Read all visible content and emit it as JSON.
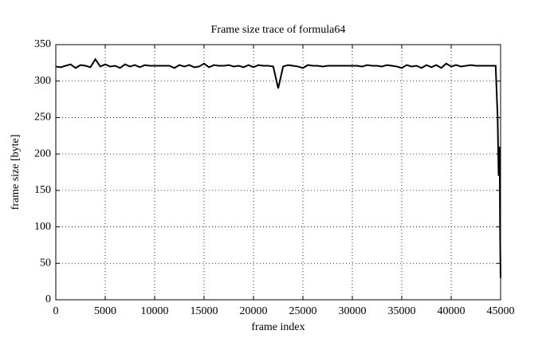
{
  "chart_data": {
    "type": "line",
    "title": "Frame size trace of formula64",
    "x_label": "frame index",
    "y_label": "frame size [byte]",
    "x": [
      0,
      500,
      1000,
      1500,
      2000,
      2500,
      3000,
      3500,
      4000,
      4500,
      5000,
      5500,
      6000,
      6500,
      7000,
      7500,
      8000,
      8500,
      9000,
      9500,
      10000,
      10500,
      11000,
      11500,
      12000,
      12500,
      13000,
      13500,
      14000,
      14500,
      15000,
      15500,
      16000,
      16500,
      17000,
      17500,
      18000,
      18500,
      19000,
      19500,
      20000,
      20500,
      21000,
      21500,
      22000,
      22500,
      23000,
      23500,
      24000,
      24500,
      25000,
      25500,
      26000,
      26500,
      27000,
      27500,
      28000,
      28500,
      29000,
      29500,
      30000,
      30500,
      31000,
      31500,
      32000,
      32500,
      33000,
      33500,
      34000,
      34500,
      35000,
      35500,
      36000,
      36500,
      37000,
      37500,
      38000,
      38500,
      39000,
      39500,
      40000,
      40500,
      41000,
      41500,
      42000,
      42500,
      43000,
      43500,
      44000,
      44500,
      44700,
      44800,
      44900,
      44950,
      45000
    ],
    "series": [
      {
        "color": "#000000",
        "values": [
          320,
          319,
          321,
          323,
          318,
          322,
          321,
          319,
          330,
          320,
          323,
          320,
          321,
          318,
          323,
          320,
          322,
          319,
          322,
          321,
          321,
          321,
          321,
          321,
          318,
          322,
          320,
          322,
          319,
          320,
          324,
          319,
          322,
          321,
          321,
          322,
          320,
          321,
          319,
          322,
          319,
          322,
          321,
          321,
          320,
          290,
          320,
          322,
          321,
          320,
          318,
          322,
          321,
          321,
          320,
          321,
          321,
          321,
          321,
          321,
          321,
          321,
          320,
          322,
          321,
          321,
          320,
          322,
          321,
          320,
          318,
          322,
          320,
          321,
          318,
          322,
          319,
          322,
          318,
          324,
          320,
          322,
          320,
          321,
          322,
          321,
          321,
          321,
          321,
          321,
          250,
          170,
          210,
          90,
          30
        ]
      }
    ],
    "xlim": [
      0,
      45000
    ],
    "ylim": [
      0,
      350
    ],
    "xticks": [
      0,
      5000,
      10000,
      15000,
      20000,
      25000,
      30000,
      35000,
      40000,
      45000
    ],
    "yticks": [
      0,
      50,
      100,
      150,
      200,
      250,
      300,
      350
    ],
    "grid": true
  }
}
